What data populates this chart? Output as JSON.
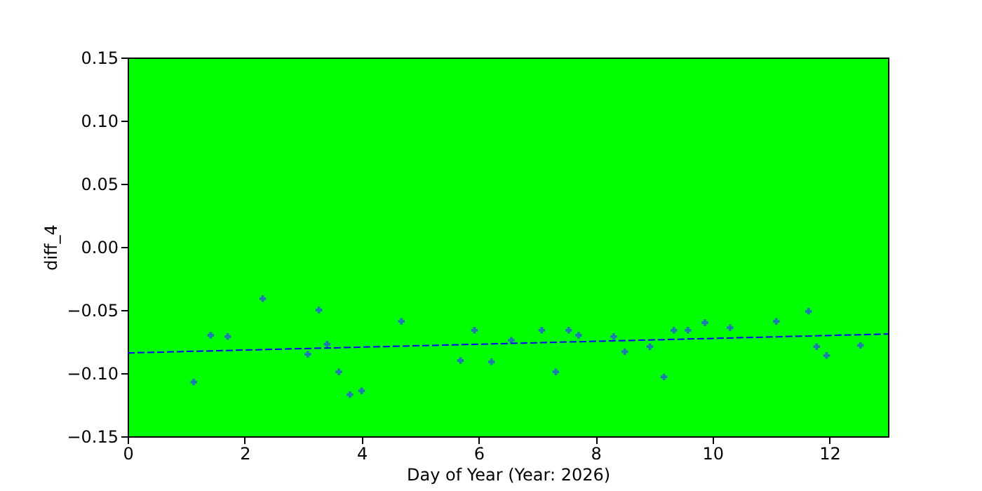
{
  "chart_data": {
    "type": "scatter",
    "xlabel": "Day of Year (Year: 2026)",
    "ylabel": "diff_4",
    "xlim": [
      0,
      13
    ],
    "ylim": [
      -0.15,
      0.15
    ],
    "xticks": [
      0,
      2,
      4,
      6,
      8,
      10,
      12
    ],
    "yticks": [
      {
        "value": -0.15,
        "label": "−0.15"
      },
      {
        "value": -0.1,
        "label": "−0.10"
      },
      {
        "value": -0.05,
        "label": "−0.05"
      },
      {
        "value": 0,
        "label": "0.00"
      },
      {
        "value": 0.05,
        "label": "0.05"
      },
      {
        "value": 0.1,
        "label": "0.10"
      },
      {
        "value": 0.15,
        "label": "0.15"
      }
    ],
    "grid": false,
    "series": [
      {
        "color": "#1f77b4",
        "marker": "cross",
        "x": [
          1.13,
          1.42,
          1.71,
          2.31,
          3.08,
          3.27,
          3.41,
          3.61,
          3.8,
          4.0,
          4.68,
          5.69,
          5.93,
          6.22,
          6.56,
          7.08,
          7.32,
          7.54,
          7.71,
          8.31,
          8.5,
          8.93,
          9.17,
          9.34,
          9.58,
          9.87,
          10.3,
          11.09,
          11.64,
          11.78,
          11.95,
          12.53
        ],
        "values": [
          -0.107,
          -0.07,
          -0.071,
          -0.041,
          -0.085,
          -0.05,
          -0.077,
          -0.099,
          -0.117,
          -0.114,
          -0.059,
          -0.09,
          -0.066,
          -0.091,
          -0.074,
          -0.066,
          -0.099,
          -0.066,
          -0.07,
          -0.071,
          -0.083,
          -0.079,
          -0.103,
          -0.066,
          -0.066,
          -0.06,
          -0.064,
          -0.059,
          -0.051,
          -0.079,
          -0.086,
          -0.078
        ]
      },
      {
        "type": "line",
        "color": "#0000ff",
        "line_style": "dashed",
        "x": [
          0,
          13
        ],
        "values": [
          -0.084,
          -0.069
        ]
      }
    ]
  }
}
